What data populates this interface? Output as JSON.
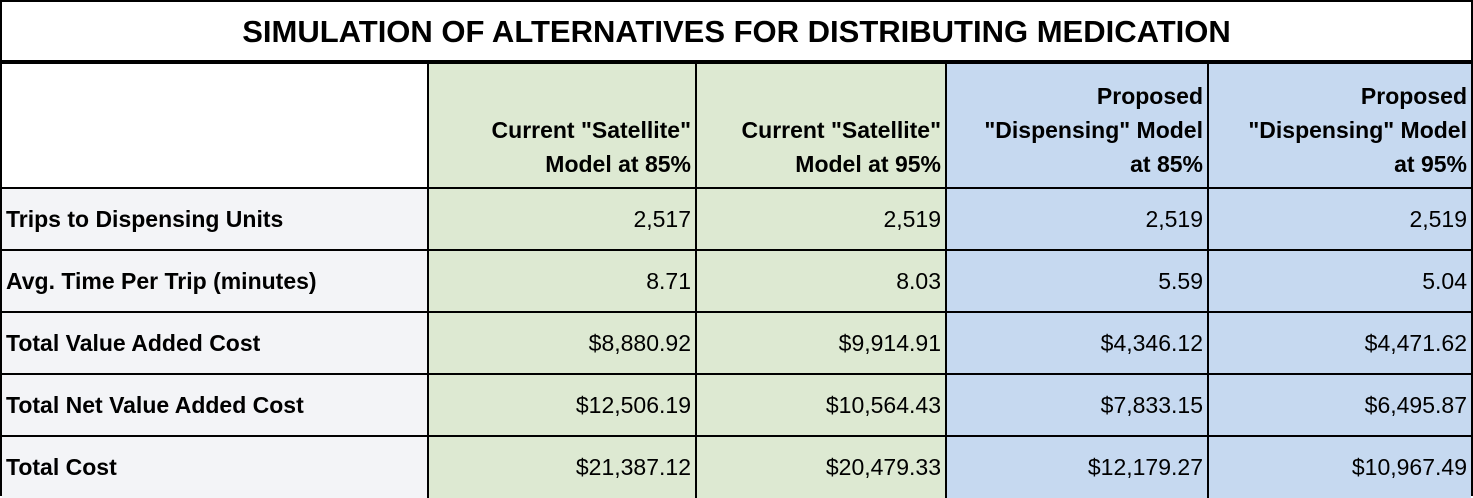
{
  "title": "SIMULATION OF ALTERNATIVES FOR DISTRIBUTING MEDICATION",
  "table": {
    "headers": [
      [
        "Current \"Satellite\"",
        "Model at 85%"
      ],
      [
        "Current \"Satellite\"",
        "Model at 95%"
      ],
      [
        "Proposed",
        "\"Dispensing\" Model",
        "at 85%"
      ],
      [
        "Proposed",
        "\"Dispensing\" Model",
        "at 95%"
      ]
    ],
    "rows": [
      [
        "Trips to Dispensing Units",
        "2,517",
        "2,519",
        "2,519",
        "2,519"
      ],
      [
        "Avg. Time Per Trip (minutes)",
        "8.71",
        "8.03",
        "5.59",
        "5.04"
      ],
      [
        "Total Value Added Cost",
        "$8,880.92",
        "$9,914.91",
        "$4,346.12",
        "$4,471.62"
      ],
      [
        "Total Net Value Added Cost",
        "$12,506.19",
        "$10,564.43",
        "$7,833.15",
        "$6,495.87"
      ],
      [
        "Total Cost",
        "$21,387.12",
        "$20,479.33",
        "$12,179.27",
        "$10,967.49"
      ]
    ]
  }
}
